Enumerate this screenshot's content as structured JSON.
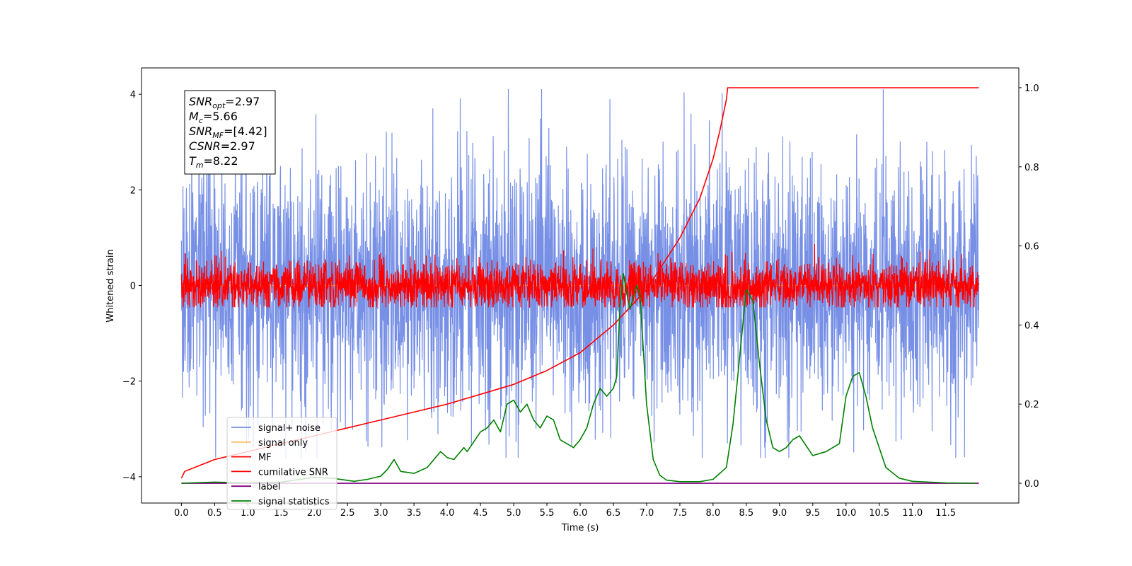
{
  "chart_data": {
    "type": "line",
    "xlabel": "Time (s)",
    "ylabel": "Whitened strain",
    "xlim": [
      -0.6,
      12.6
    ],
    "ylim": [
      -4.55,
      4.55
    ],
    "y2lim": [
      -0.05,
      1.05
    ],
    "x_ticks": [
      0.0,
      0.5,
      1.0,
      1.5,
      2.0,
      2.5,
      3.0,
      3.5,
      4.0,
      4.5,
      5.0,
      5.5,
      6.0,
      6.5,
      7.0,
      7.5,
      8.0,
      8.5,
      9.0,
      9.5,
      10.0,
      10.5,
      11.0,
      11.5
    ],
    "x_tick_labels": [
      "0.0",
      "0.5",
      "1.0",
      "1.5",
      "2.0",
      "2.5",
      "3.0",
      "3.5",
      "4.0",
      "4.5",
      "5.0",
      "5.5",
      "6.0",
      "6.5",
      "7.0",
      "7.5",
      "8.0",
      "8.5",
      "9.0",
      "9.5",
      "10.0",
      "10.5",
      "11.0",
      "11.5"
    ],
    "y_ticks": [
      -4,
      -2,
      0,
      2,
      4
    ],
    "y_tick_labels": [
      "−4",
      "−2",
      "0",
      "2",
      "4"
    ],
    "y2_ticks": [
      0.0,
      0.2,
      0.4,
      0.6,
      0.8,
      1.0
    ],
    "y2_tick_labels": [
      "0.0",
      "0.2",
      "0.4",
      "0.6",
      "0.8",
      "1.0"
    ],
    "grid": false,
    "legend_position": "lower-left",
    "info_box": {
      "lines": [
        {
          "sym": "SNR",
          "sub": "opt",
          "val": "=2.97"
        },
        {
          "sym": "M",
          "sub": "c",
          "val": "=5.66"
        },
        {
          "sym": "SNR",
          "sub": "MF",
          "val": "=[4.42]"
        },
        {
          "sym": "CSNR",
          "sub": "",
          "val": "=2.97"
        },
        {
          "sym": "T",
          "sub": "m",
          "val": "=8.22"
        }
      ]
    },
    "series": [
      {
        "name": "signal+ noise",
        "color": "#7790e6",
        "axis": "left",
        "kind": "noise",
        "x_range": [
          0.0,
          12.0
        ],
        "approx_std": 1.3,
        "approx_extent": [
          -3.6,
          4.1
        ]
      },
      {
        "name": "signal only",
        "color": "#ffbf70",
        "axis": "left",
        "kind": "flat",
        "x_range": [
          0.0,
          12.0
        ],
        "y": 0.0
      },
      {
        "name": "MF",
        "color": "#ff0000",
        "axis": "left",
        "kind": "noise",
        "x_range": [
          0.0,
          12.0
        ],
        "approx_std": 0.25,
        "approx_extent": [
          -0.45,
          1.0
        ]
      },
      {
        "name": "cumilative SNR",
        "color": "#ff0000",
        "axis": "right",
        "kind": "curve",
        "x": [
          0.0,
          0.05,
          0.5,
          1.0,
          1.5,
          2.0,
          2.5,
          3.0,
          3.5,
          4.0,
          4.5,
          5.0,
          5.5,
          6.0,
          6.5,
          7.0,
          7.5,
          7.8,
          8.0,
          8.1,
          8.2,
          8.22,
          12.0
        ],
        "y": [
          0.013,
          0.03,
          0.06,
          0.08,
          0.1,
          0.12,
          0.14,
          0.16,
          0.18,
          0.2,
          0.225,
          0.25,
          0.285,
          0.33,
          0.4,
          0.49,
          0.62,
          0.72,
          0.82,
          0.89,
          0.97,
          1.0,
          1.0
        ]
      },
      {
        "name": "label",
        "color": "#800080",
        "axis": "right",
        "kind": "flat",
        "x_range": [
          0.0,
          12.0
        ],
        "y": 0.0
      },
      {
        "name": "signal statistics",
        "color": "#008000",
        "axis": "right",
        "kind": "curve",
        "x": [
          0.0,
          0.5,
          1.0,
          1.5,
          2.0,
          2.3,
          2.6,
          2.8,
          3.0,
          3.1,
          3.2,
          3.3,
          3.5,
          3.7,
          3.9,
          4.0,
          4.1,
          4.25,
          4.3,
          4.5,
          4.6,
          4.7,
          4.8,
          4.9,
          5.0,
          5.1,
          5.2,
          5.3,
          5.4,
          5.5,
          5.6,
          5.7,
          5.8,
          5.9,
          6.0,
          6.1,
          6.2,
          6.3,
          6.4,
          6.5,
          6.55,
          6.6,
          6.65,
          6.7,
          6.75,
          6.8,
          6.85,
          6.9,
          7.0,
          7.1,
          7.2,
          7.3,
          7.5,
          7.8,
          8.0,
          8.2,
          8.3,
          8.4,
          8.5,
          8.6,
          8.7,
          8.8,
          8.9,
          9.0,
          9.1,
          9.2,
          9.3,
          9.5,
          9.7,
          9.9,
          10.0,
          10.1,
          10.2,
          10.3,
          10.4,
          10.6,
          10.8,
          11.0,
          11.5,
          11.95
        ],
        "y": [
          0.0,
          0.003,
          0.001,
          0.003,
          0.015,
          0.012,
          0.005,
          0.01,
          0.018,
          0.035,
          0.06,
          0.03,
          0.025,
          0.04,
          0.08,
          0.065,
          0.06,
          0.09,
          0.08,
          0.13,
          0.14,
          0.16,
          0.13,
          0.2,
          0.21,
          0.18,
          0.2,
          0.16,
          0.14,
          0.17,
          0.16,
          0.11,
          0.1,
          0.09,
          0.11,
          0.14,
          0.2,
          0.24,
          0.22,
          0.24,
          0.27,
          0.45,
          0.53,
          0.48,
          0.44,
          0.47,
          0.5,
          0.48,
          0.2,
          0.06,
          0.02,
          0.008,
          0.004,
          0.004,
          0.01,
          0.04,
          0.15,
          0.32,
          0.49,
          0.46,
          0.3,
          0.16,
          0.09,
          0.08,
          0.09,
          0.11,
          0.12,
          0.07,
          0.08,
          0.1,
          0.22,
          0.27,
          0.28,
          0.22,
          0.14,
          0.04,
          0.013,
          0.005,
          0.001,
          0.0
        ]
      }
    ]
  }
}
